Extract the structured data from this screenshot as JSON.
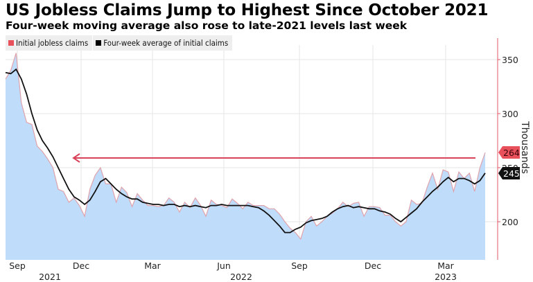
{
  "header": {
    "title": "US Jobless Claims Jump to Highest Since October 2021",
    "subtitle": "Four-week moving average also rose to late-2021 levels last week"
  },
  "legend": [
    {
      "label": "Initial jobless claims",
      "color": "#e8505b"
    },
    {
      "label": "Four-week average of initial claims",
      "color": "#000000"
    }
  ],
  "colors": {
    "area_fill": "#bfdcfb",
    "claims_line": "#e0a3ab",
    "average_line": "#111111",
    "arrow": "#d9435a",
    "axis": "#e05565",
    "grid": "#e6e6e6"
  },
  "annotations": {
    "claims_label": "264",
    "average_label": "245"
  },
  "chart_data": {
    "type": "area",
    "title": "US Jobless Claims Jump to Highest Since October 2021",
    "subtitle": "Four-week moving average also rose to late-2021 levels last week",
    "xlabel": "",
    "ylabel": "Thousands",
    "ylim": [
      165,
      365
    ],
    "yticks": [
      200,
      250,
      300,
      350
    ],
    "xticks": [
      {
        "label": "Sep",
        "year": "2021"
      },
      {
        "label": "Dec",
        "year": ""
      },
      {
        "label": "Mar",
        "year": ""
      },
      {
        "label": "Jun",
        "year": "2022"
      },
      {
        "label": "Sep",
        "year": ""
      },
      {
        "label": "Dec",
        "year": ""
      },
      {
        "label": "Mar",
        "year": "2023"
      }
    ],
    "year_labels": [
      "2021",
      "2022",
      "2023"
    ],
    "grid": true,
    "legend_position": "top-left",
    "frequency": "weekly",
    "start": "2021-08 (late)",
    "end": "2023-04 (mid)",
    "series": [
      {
        "name": "Initial jobless claims",
        "values": [
          332,
          340,
          356,
          310,
          292,
          290,
          270,
          265,
          258,
          250,
          230,
          228,
          218,
          222,
          215,
          205,
          230,
          243,
          250,
          235,
          235,
          218,
          232,
          227,
          214,
          226,
          220,
          215,
          215,
          214,
          215,
          222,
          218,
          209,
          218,
          213,
          222,
          215,
          205,
          220,
          216,
          215,
          213,
          221,
          217,
          212,
          218,
          215,
          215,
          215,
          212,
          212,
          207,
          200,
          194,
          190,
          184,
          200,
          205,
          196,
          200,
          205,
          208,
          212,
          218,
          214,
          217,
          218,
          205,
          214,
          214,
          213,
          206,
          206,
          200,
          196,
          200,
          220,
          216,
          217,
          232,
          245,
          230,
          248,
          246,
          228,
          246,
          240,
          245,
          228,
          250,
          264
        ]
      },
      {
        "name": "Four-week average of initial claims",
        "values": [
          338,
          337,
          341,
          332,
          318,
          300,
          285,
          275,
          268,
          260,
          250,
          240,
          230,
          223,
          220,
          216,
          220,
          228,
          237,
          240,
          235,
          230,
          226,
          223,
          221,
          221,
          218,
          217,
          216,
          216,
          215,
          216,
          216,
          214,
          215,
          214,
          215,
          214,
          213,
          215,
          215,
          216,
          215,
          215,
          215,
          215,
          215,
          214,
          213,
          210,
          206,
          201,
          196,
          190,
          190,
          193,
          195,
          199,
          201,
          202,
          203,
          205,
          209,
          212,
          214,
          215,
          213,
          214,
          213,
          212,
          212,
          210,
          209,
          207,
          203,
          200,
          204,
          208,
          212,
          218,
          223,
          228,
          232,
          237,
          241,
          237,
          240,
          240,
          238,
          235,
          238,
          245
        ]
      }
    ],
    "annotations": [
      {
        "type": "arrow",
        "from_value": 260,
        "direction": "left",
        "text": ""
      },
      {
        "type": "last-value-label",
        "series": "Initial jobless claims",
        "value": 264
      },
      {
        "type": "last-value-label",
        "series": "Four-week average of initial claims",
        "value": 245
      }
    ]
  }
}
